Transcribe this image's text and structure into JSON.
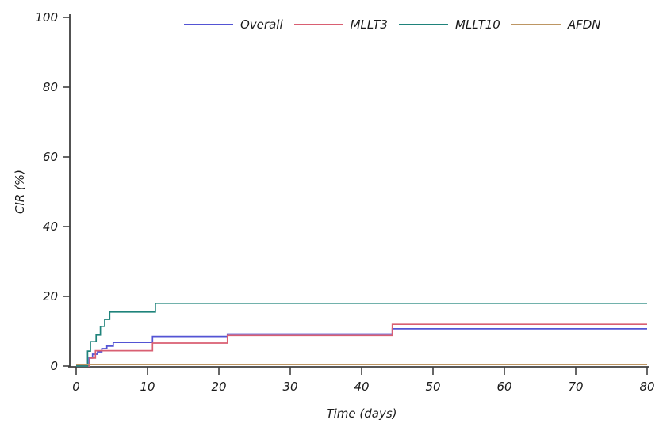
{
  "chart_data": {
    "type": "line",
    "subtype": "step-post",
    "title": "",
    "xlabel": "Time (days)",
    "ylabel": "CIR (%)",
    "xlim": [
      0,
      80
    ],
    "ylim": [
      0,
      100
    ],
    "xticks": [
      0,
      10,
      20,
      30,
      40,
      50,
      60,
      70,
      80
    ],
    "yticks": [
      0,
      20,
      40,
      60,
      80,
      100
    ],
    "grid": false,
    "legend_position": "top-center",
    "axis_color": "#3f3f3f",
    "text_color": "#1a1a1a",
    "series": [
      {
        "name": "Overall",
        "color": "#5454d4",
        "steps": [
          [
            0,
            0
          ],
          [
            1.8,
            2.3
          ],
          [
            2.3,
            3.4
          ],
          [
            3.0,
            4.1
          ],
          [
            3.6,
            5.0
          ],
          [
            4.3,
            5.7
          ],
          [
            5.2,
            6.8
          ],
          [
            10.7,
            8.5
          ],
          [
            21.2,
            9.2
          ],
          [
            44.3,
            10.7
          ],
          [
            80,
            10.7
          ]
        ]
      },
      {
        "name": "MLLT3",
        "color": "#d95f72",
        "steps": [
          [
            0,
            0
          ],
          [
            1.9,
            2.3
          ],
          [
            2.7,
            4.4
          ],
          [
            10.7,
            6.6
          ],
          [
            21.2,
            8.8
          ],
          [
            44.3,
            12.0
          ],
          [
            80,
            12.0
          ]
        ]
      },
      {
        "name": "MLLT10",
        "color": "#1f837b",
        "steps": [
          [
            0,
            0
          ],
          [
            1.6,
            4.3
          ],
          [
            2.0,
            7.0
          ],
          [
            2.8,
            8.9
          ],
          [
            3.4,
            11.4
          ],
          [
            4.0,
            13.4
          ],
          [
            4.7,
            15.5
          ],
          [
            11.1,
            18.0
          ],
          [
            80,
            18.0
          ]
        ]
      },
      {
        "name": "AFDN",
        "color": "#bd9663",
        "steps": [
          [
            0,
            0.5
          ],
          [
            80,
            0.5
          ]
        ]
      }
    ]
  }
}
